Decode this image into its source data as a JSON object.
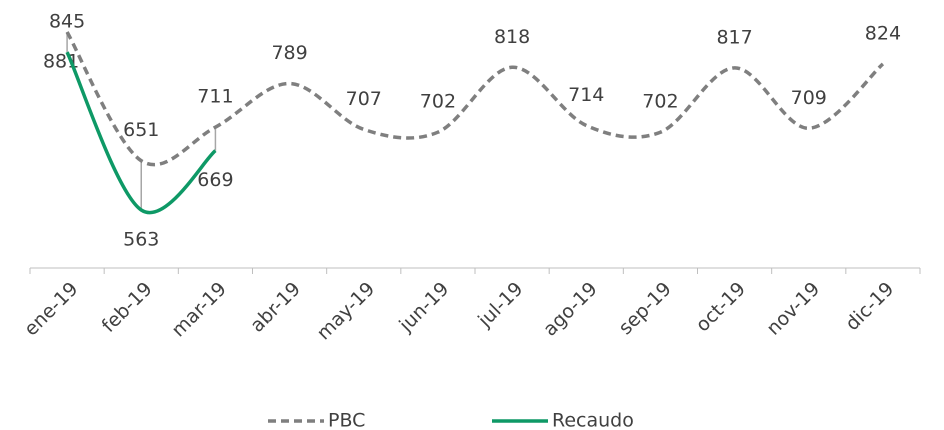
{
  "chart_data": {
    "type": "line",
    "categories": [
      "ene-19",
      "feb-19",
      "mar-19",
      "abr-19",
      "may-19",
      "jun-19",
      "jul-19",
      "ago-19",
      "sep-19",
      "oct-19",
      "nov-19",
      "dic-19"
    ],
    "series": [
      {
        "name": "PBC",
        "color": "#7f7f7f",
        "dash": true,
        "values": [
          881,
          651,
          711,
          789,
          707,
          702,
          818,
          714,
          702,
          817,
          709,
          824
        ]
      },
      {
        "name": "Recaudo",
        "color": "#0e9966",
        "dash": false,
        "values": [
          845,
          563,
          669,
          null,
          null,
          null,
          null,
          null,
          null,
          null,
          null,
          null
        ]
      }
    ],
    "legend": "bottom"
  }
}
